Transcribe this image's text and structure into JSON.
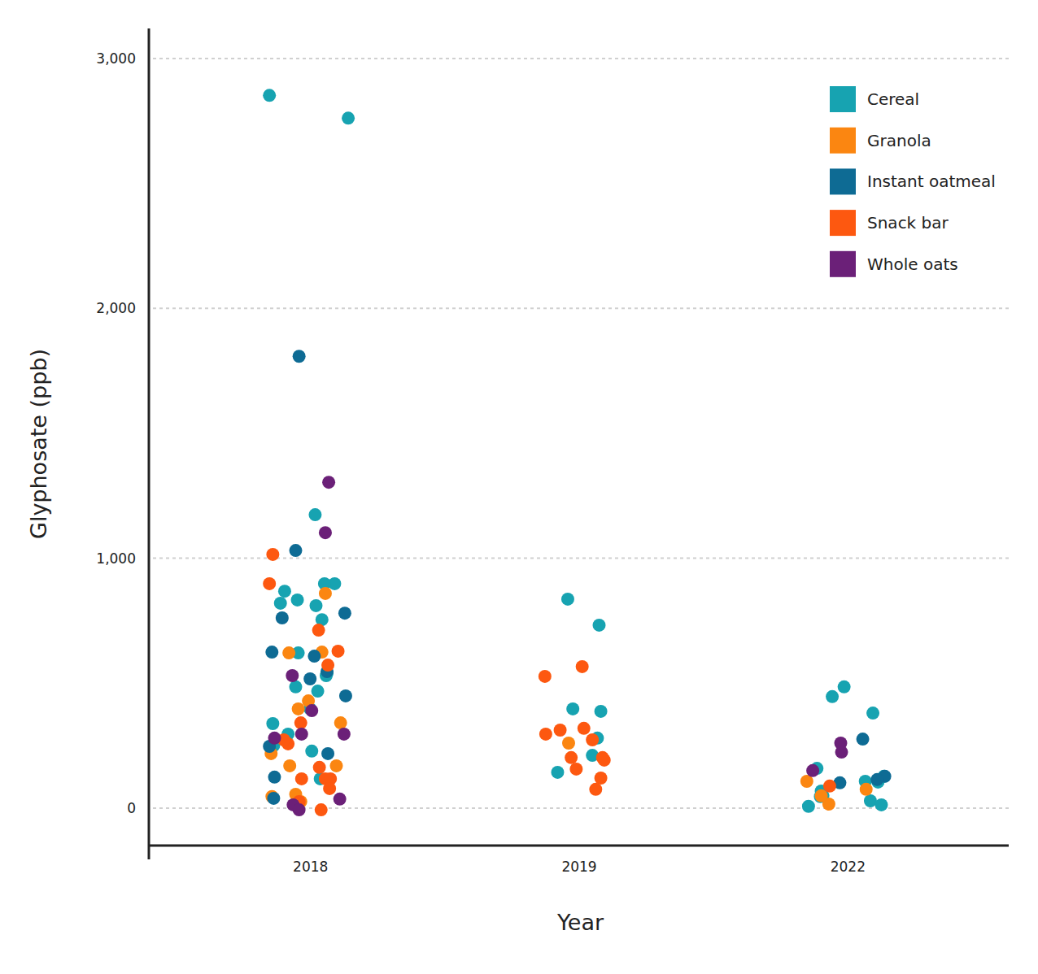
{
  "chart_data": {
    "type": "scatter",
    "x_label": "Year",
    "y_label": "Glyphosate (ppb)",
    "categories": [
      "2018",
      "2019",
      "2022"
    ],
    "ylim": [
      -150,
      3120
    ],
    "yticks": [
      0,
      {
        "value": 1000,
        "label": "1,000"
      },
      {
        "value": 2000,
        "label": "2,000"
      },
      {
        "value": 3000,
        "label": "3,000"
      }
    ],
    "grid": true,
    "legend": "upper right",
    "series": [
      {
        "name": "Cereal",
        "color": "#17a3b1",
        "x": [
          "2018",
          "2018",
          "2018",
          "2018",
          "2018",
          "2018",
          "2018",
          "2018",
          "2018",
          "2018",
          "2018",
          "2018",
          "2018",
          "2018",
          "2018",
          "2018",
          "2018",
          "2018",
          "2018",
          "2018",
          "2018",
          "2019",
          "2019",
          "2019",
          "2019",
          "2019",
          "2019",
          "2019",
          "2022",
          "2022",
          "2022",
          "2022",
          "2022",
          "2022",
          "2022",
          "2022",
          "2022",
          "2022",
          "2022",
          "2022",
          "2022"
        ],
        "values": [
          2852,
          2761,
          1174,
          898,
          898,
          868,
          833,
          820,
          810,
          754,
          621,
          540,
          530,
          485,
          468,
          397,
          338,
          296,
          250,
          228,
          117,
          836,
          732,
          387,
          397,
          280,
          211,
          143,
          485,
          446,
          380,
          127,
          107,
          159,
          68,
          104,
          49,
          46,
          29,
          7,
          13
        ]
      },
      {
        "name": "Granola",
        "color": "#fb8611",
        "x": [
          "2018",
          "2018",
          "2018",
          "2018",
          "2018",
          "2018",
          "2018",
          "2018",
          "2018",
          "2018",
          "2018",
          "2018",
          "2019",
          "2022",
          "2022",
          "2022",
          "2022"
        ],
        "values": [
          859,
          624,
          621,
          429,
          397,
          341,
          218,
          169,
          169,
          55,
          46,
          26,
          260,
          107,
          16,
          49,
          75
        ]
      },
      {
        "name": "Instant oatmeal",
        "color": "#0e6b94",
        "x": [
          "2018",
          "2018",
          "2018",
          "2018",
          "2018",
          "2018",
          "2018",
          "2018",
          "2018",
          "2018",
          "2018",
          "2018",
          "2018",
          "2022",
          "2022",
          "2022",
          "2022"
        ],
        "values": [
          1808,
          1031,
          780,
          761,
          624,
          608,
          546,
          517,
          449,
          247,
          218,
          124,
          39,
          276,
          127,
          114,
          101
        ]
      },
      {
        "name": "Snack bar",
        "color": "#fd5810",
        "x": [
          "2018",
          "2018",
          "2018",
          "2018",
          "2018",
          "2018",
          "2018",
          "2018",
          "2018",
          "2018",
          "2018",
          "2018",
          "2018",
          "2018",
          "2018",
          "2019",
          "2019",
          "2019",
          "2019",
          "2019",
          "2019",
          "2019",
          "2019",
          "2019",
          "2019",
          "2019",
          "2019",
          "2022"
        ],
        "values": [
          1015,
          898,
          712,
          628,
          572,
          257,
          341,
          273,
          163,
          117,
          117,
          117,
          78,
          26,
          -7,
          566,
          527,
          312,
          296,
          319,
          273,
          202,
          202,
          192,
          156,
          120,
          75,
          88
        ]
      },
      {
        "name": "Whole oats",
        "color": "#6b2078",
        "x": [
          "2018",
          "2018",
          "2018",
          "2018",
          "2018",
          "2018",
          "2018",
          "2018",
          "2018",
          "2018",
          "2022",
          "2022",
          "2022"
        ],
        "values": [
          1304,
          1102,
          530,
          390,
          296,
          296,
          280,
          36,
          13,
          -7,
          150,
          224,
          260
        ]
      }
    ]
  }
}
